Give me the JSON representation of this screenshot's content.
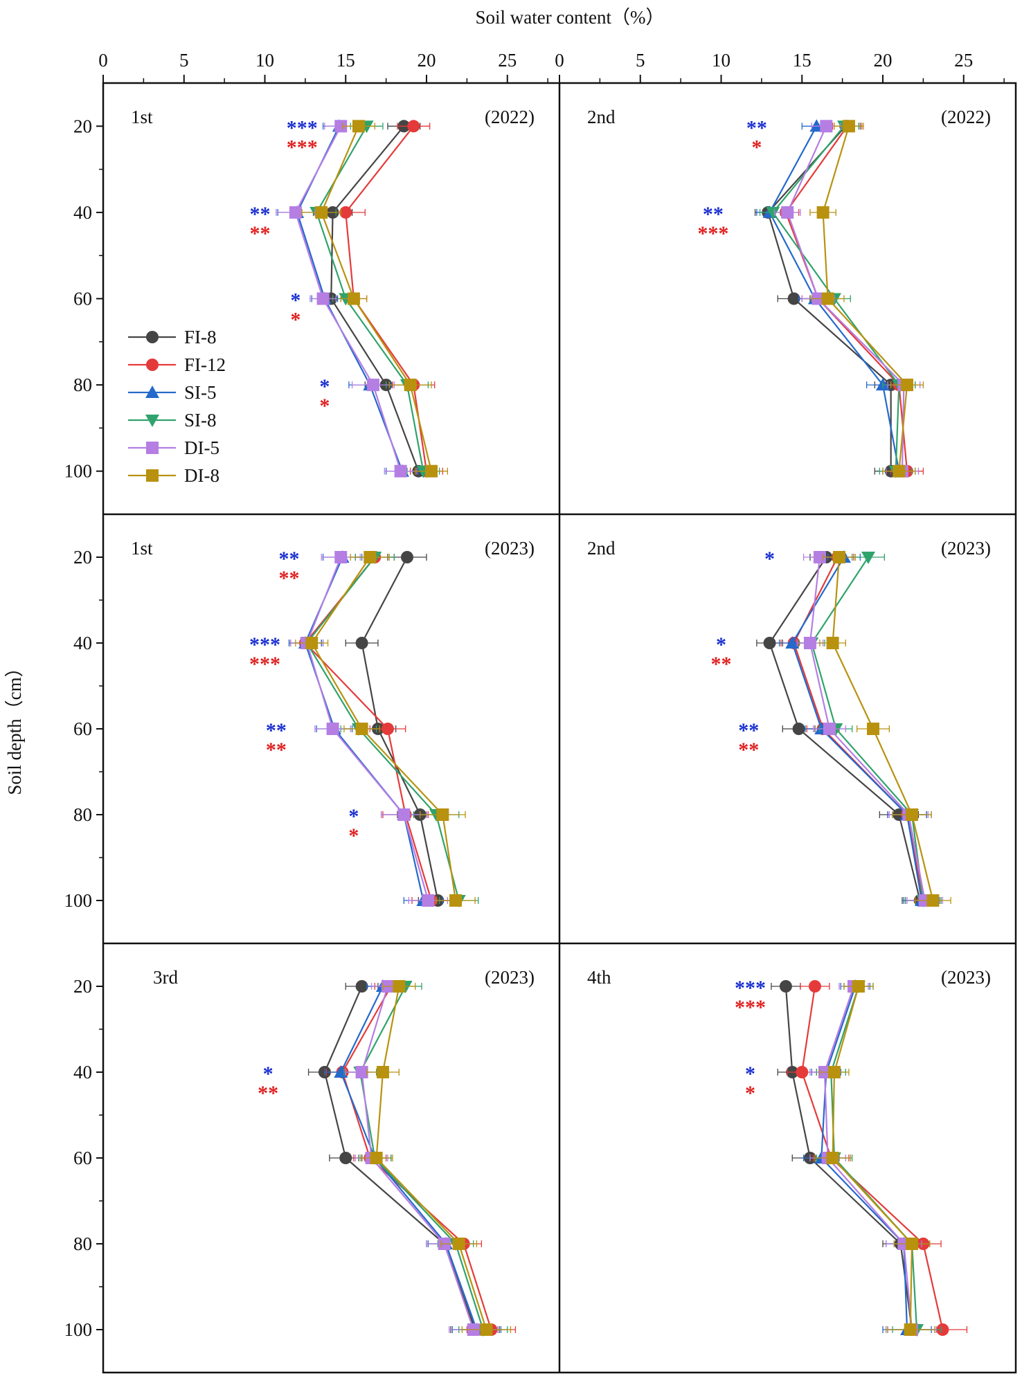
{
  "chart_data": {
    "type": "line",
    "x_axis_title": "Soil water content（%）",
    "y_axis_title": "Soil depth（cm）",
    "x_ticks": [
      0,
      5,
      10,
      15,
      20,
      25
    ],
    "xlim": [
      0,
      28
    ],
    "ylim": [
      110,
      10
    ],
    "depths": [
      20,
      40,
      60,
      80,
      100
    ],
    "colors": {
      "FI-8": "#454545",
      "FI-12": "#e53a3a",
      "SI-5": "#2469cc",
      "SI-8": "#2fa36b",
      "DI-5": "#b57ee3",
      "DI-8": "#b8920f",
      "sig_blue": "#1a2fd0",
      "sig_red": "#e01f1f"
    },
    "legend": [
      {
        "name": "FI-8",
        "marker": "circle"
      },
      {
        "name": "FI-12",
        "marker": "circle"
      },
      {
        "name": "SI-5",
        "marker": "triangle-up"
      },
      {
        "name": "SI-8",
        "marker": "triangle-down"
      },
      {
        "name": "DI-5",
        "marker": "square"
      },
      {
        "name": "DI-8",
        "marker": "square"
      }
    ],
    "panels": [
      {
        "label": "1st",
        "year": "(2022)",
        "series": {
          "FI-8": [
            18.6,
            14.2,
            14.1,
            17.5,
            19.5
          ],
          "FI-12": [
            19.2,
            15.0,
            15.5,
            19.2,
            20.0
          ],
          "SI-5": [
            14.6,
            12.0,
            13.7,
            16.5,
            18.5
          ],
          "SI-8": [
            16.3,
            13.2,
            15.0,
            18.8,
            19.8
          ],
          "DI-5": [
            14.7,
            11.9,
            13.6,
            16.7,
            18.4
          ],
          "DI-8": [
            15.8,
            13.5,
            15.5,
            19.0,
            20.3
          ]
        },
        "err": [
          1.0,
          1.2,
          0.8,
          1.3,
          1.0
        ],
        "sig": [
          {
            "depth": 20,
            "blue": "***",
            "red": "***"
          },
          {
            "depth": 40,
            "blue": "**",
            "red": "**"
          },
          {
            "depth": 60,
            "blue": "*",
            "red": "*"
          },
          {
            "depth": 80,
            "blue": "*",
            "red": "*"
          }
        ],
        "sig_x": [
          12.3,
          9.7,
          11.9,
          13.7
        ]
      },
      {
        "label": "2nd",
        "year": "(2022)",
        "series": {
          "FI-8": [
            17.7,
            12.9,
            14.5,
            20.5,
            20.5
          ],
          "FI-12": [
            17.8,
            14.0,
            16.0,
            21.0,
            21.5
          ],
          "SI-5": [
            15.9,
            13.0,
            15.8,
            20.0,
            21.0
          ],
          "SI-8": [
            17.6,
            13.2,
            17.0,
            21.0,
            20.8
          ],
          "DI-5": [
            16.5,
            14.1,
            16.0,
            21.3,
            21.2
          ],
          "DI-8": [
            17.9,
            16.3,
            16.6,
            21.5,
            21.0
          ]
        },
        "err": [
          0.9,
          0.8,
          1.0,
          1.0,
          1.0
        ],
        "sig": [
          {
            "depth": 20,
            "blue": "**",
            "red": "*"
          },
          {
            "depth": 40,
            "blue": "**",
            "red": "***"
          },
          {
            "depth": 60,
            "blue": "",
            "red": ""
          },
          {
            "depth": 80,
            "blue": "",
            "red": ""
          }
        ],
        "sig_x": [
          12.2,
          9.5,
          0,
          0
        ]
      },
      {
        "label": "1st",
        "year": "(2023)",
        "series": {
          "FI-8": [
            18.8,
            16.0,
            17.0,
            19.6,
            20.7
          ],
          "FI-12": [
            16.8,
            12.5,
            17.6,
            18.7,
            20.3
          ],
          "SI-5": [
            14.8,
            12.5,
            14.3,
            18.6,
            19.8
          ],
          "SI-8": [
            16.8,
            12.6,
            15.8,
            20.6,
            22.0
          ],
          "DI-5": [
            14.7,
            12.6,
            14.2,
            18.6,
            20.1
          ],
          "DI-8": [
            16.5,
            12.9,
            16.0,
            21.0,
            21.8
          ]
        },
        "err": [
          1.2,
          1.0,
          1.1,
          1.4,
          1.2
        ],
        "sig": [
          {
            "depth": 20,
            "blue": "**",
            "red": "**"
          },
          {
            "depth": 40,
            "blue": "***",
            "red": "***"
          },
          {
            "depth": 60,
            "blue": "**",
            "red": "**"
          },
          {
            "depth": 80,
            "blue": "*",
            "red": "*"
          }
        ],
        "sig_x": [
          11.5,
          10.0,
          10.7,
          15.5
        ]
      },
      {
        "label": "2nd",
        "year": "(2023)",
        "series": {
          "FI-8": [
            16.5,
            13.0,
            14.8,
            21.0,
            22.3
          ],
          "FI-12": [
            17.2,
            14.5,
            16.3,
            21.5,
            22.5
          ],
          "SI-5": [
            17.6,
            14.4,
            16.2,
            21.5,
            22.4
          ],
          "SI-8": [
            19.1,
            15.6,
            17.1,
            21.8,
            22.5
          ],
          "DI-5": [
            16.1,
            15.5,
            16.7,
            21.6,
            22.6
          ],
          "DI-8": [
            17.3,
            16.9,
            19.4,
            21.8,
            23.1
          ]
        },
        "err": [
          1.0,
          0.8,
          1.0,
          1.2,
          1.1
        ],
        "sig": [
          {
            "depth": 20,
            "blue": "*",
            "red": ""
          },
          {
            "depth": 40,
            "blue": "*",
            "red": "**"
          },
          {
            "depth": 60,
            "blue": "**",
            "red": "**"
          },
          {
            "depth": 80,
            "blue": "",
            "red": ""
          }
        ],
        "sig_x": [
          13.0,
          10.0,
          11.7,
          0
        ]
      },
      {
        "label": "3rd",
        "year": "(2023)",
        "series": {
          "FI-8": [
            16.0,
            13.7,
            15.0,
            21.1,
            23.0
          ],
          "FI-12": [
            17.8,
            14.8,
            16.5,
            22.3,
            24.0
          ],
          "SI-5": [
            17.3,
            14.7,
            16.8,
            21.2,
            23.1
          ],
          "SI-8": [
            18.7,
            15.9,
            16.8,
            21.8,
            23.5
          ],
          "DI-5": [
            17.6,
            16.0,
            16.6,
            21.1,
            22.9
          ],
          "DI-8": [
            18.3,
            17.3,
            16.9,
            22.0,
            23.7
          ]
        },
        "err": [
          1.0,
          1.0,
          1.0,
          1.1,
          1.5
        ],
        "sig": [
          {
            "depth": 20,
            "blue": "",
            "red": ""
          },
          {
            "depth": 40,
            "blue": "*",
            "red": "**"
          },
          {
            "depth": 60,
            "blue": "",
            "red": ""
          },
          {
            "depth": 80,
            "blue": "",
            "red": ""
          }
        ],
        "sig_x": [
          0,
          10.2,
          0,
          0
        ]
      },
      {
        "label": "4th",
        "year": "(2023)",
        "series": {
          "FI-8": [
            14.0,
            14.4,
            15.5,
            21.1,
            21.8
          ],
          "FI-12": [
            15.8,
            15.0,
            16.8,
            22.5,
            23.7
          ],
          "SI-5": [
            18.3,
            16.5,
            16.2,
            21.3,
            21.5
          ],
          "SI-8": [
            18.5,
            16.8,
            17.0,
            21.8,
            22.1
          ],
          "DI-5": [
            18.2,
            16.4,
            16.6,
            21.3,
            21.8
          ],
          "DI-8": [
            18.5,
            17.0,
            16.9,
            21.8,
            21.7
          ]
        },
        "err": [
          0.9,
          0.9,
          1.1,
          1.1,
          1.5
        ],
        "sig": [
          {
            "depth": 20,
            "blue": "***",
            "red": "***"
          },
          {
            "depth": 40,
            "blue": "*",
            "red": "*"
          },
          {
            "depth": 60,
            "blue": "",
            "red": ""
          },
          {
            "depth": 80,
            "blue": "",
            "red": ""
          }
        ],
        "sig_x": [
          11.8,
          11.8,
          0,
          0
        ]
      }
    ]
  }
}
